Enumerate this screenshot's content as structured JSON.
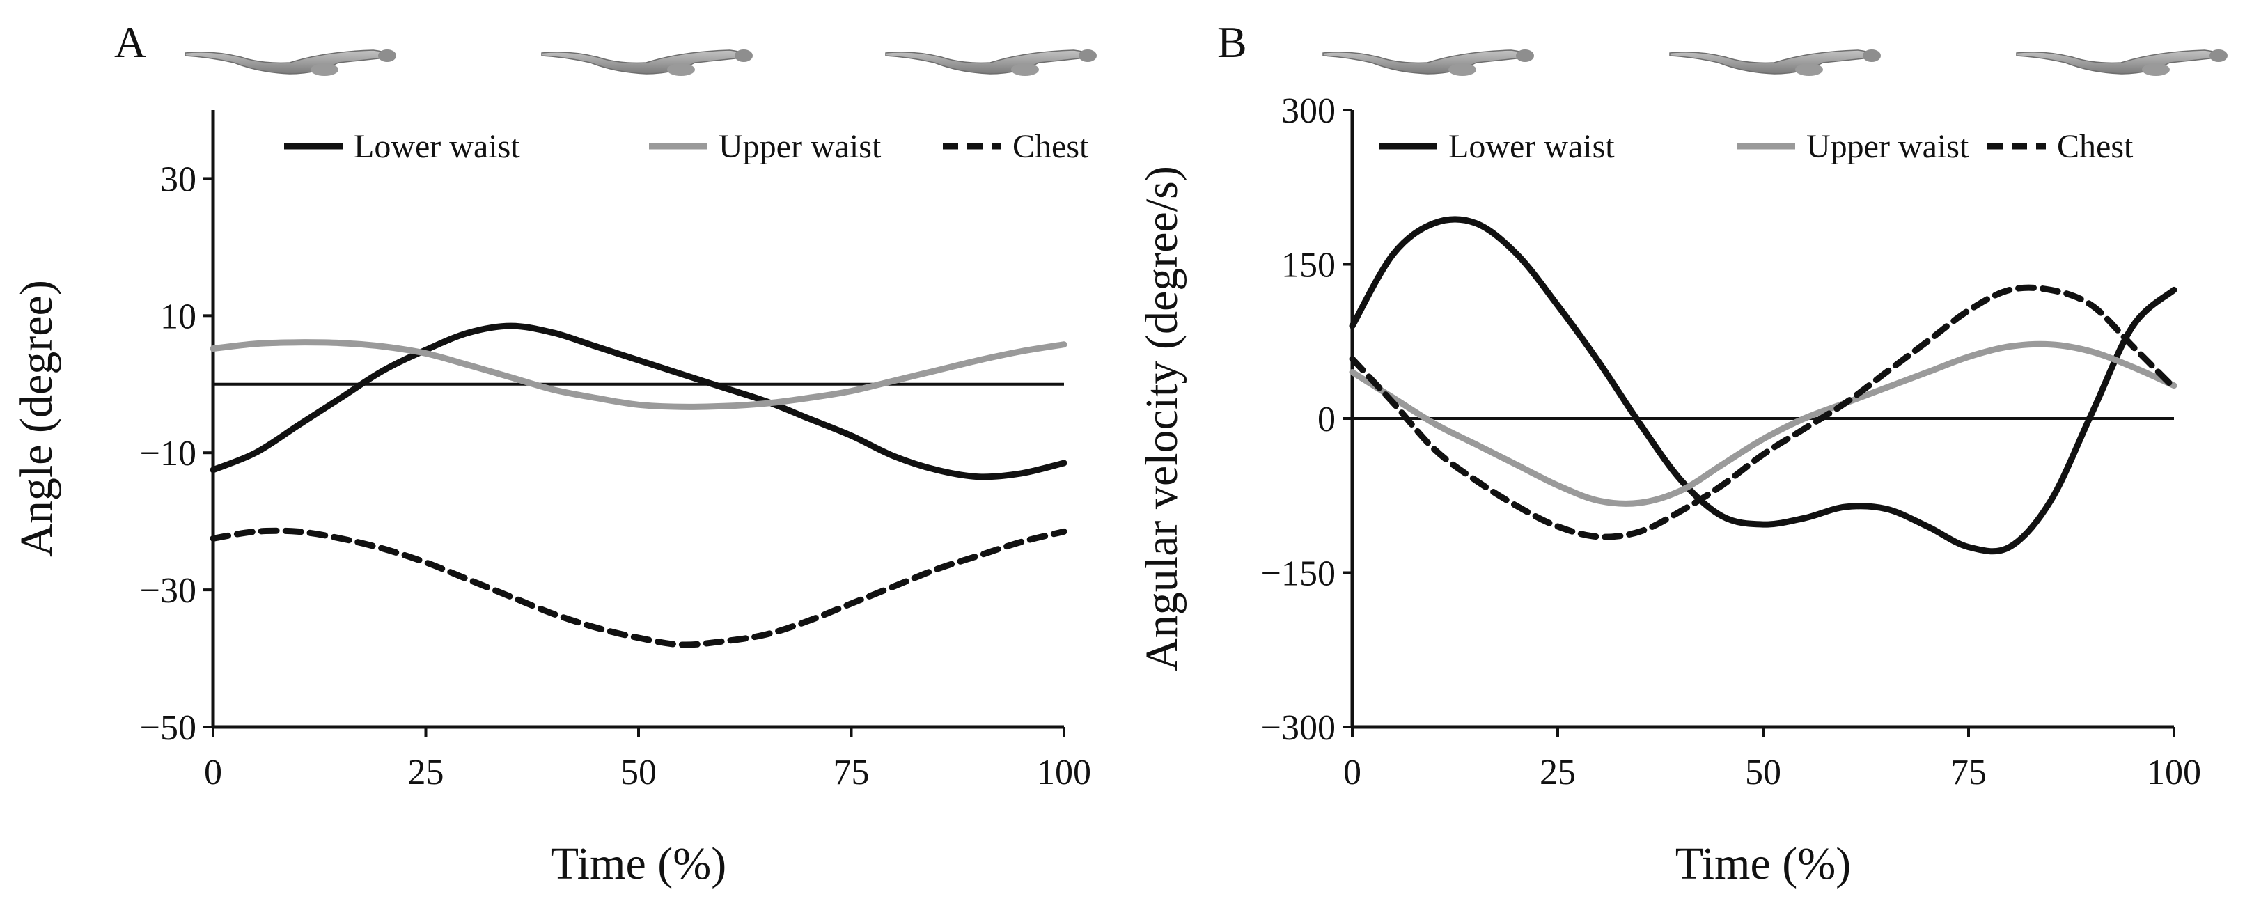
{
  "chart_data": [
    {
      "type": "line",
      "panel_label": "A",
      "xlabel": "Time (%)",
      "ylabel": "Angle (degree)",
      "xlim": [
        0,
        100
      ],
      "ylim": [
        -50,
        40
      ],
      "xticks": [
        0,
        25,
        50,
        75,
        100
      ],
      "yticks": [
        -50,
        -30,
        -10,
        10,
        30
      ],
      "reference_line_y": 0,
      "legend_position": "top-right",
      "grid": false,
      "series": [
        {
          "name": "Lower waist",
          "color": "#111111",
          "style": "solid",
          "x": [
            0,
            5,
            10,
            15,
            20,
            25,
            30,
            35,
            40,
            45,
            50,
            55,
            60,
            65,
            70,
            75,
            80,
            85,
            90,
            95,
            100
          ],
          "values": [
            -12.5,
            -10,
            -6,
            -2,
            2,
            5,
            7.5,
            8.5,
            7.5,
            5.5,
            3.5,
            1.5,
            -0.5,
            -2.5,
            -5,
            -7.5,
            -10.5,
            -12.5,
            -13.5,
            -13,
            -11.5
          ]
        },
        {
          "name": "Upper waist",
          "color": "#9a9a9a",
          "style": "solid",
          "x": [
            0,
            5,
            10,
            15,
            20,
            25,
            30,
            35,
            40,
            45,
            50,
            55,
            60,
            65,
            70,
            75,
            80,
            85,
            90,
            95,
            100
          ],
          "values": [
            5.2,
            5.9,
            6.1,
            6,
            5.5,
            4.5,
            2.8,
            1,
            -0.8,
            -2,
            -3,
            -3.3,
            -3.2,
            -2.8,
            -2,
            -1,
            0.5,
            2,
            3.5,
            4.8,
            5.8
          ]
        },
        {
          "name": "Chest",
          "color": "#111111",
          "style": "dashed",
          "x": [
            0,
            5,
            10,
            15,
            20,
            25,
            30,
            35,
            40,
            45,
            50,
            55,
            60,
            65,
            70,
            75,
            80,
            85,
            90,
            95,
            100
          ],
          "values": [
            -22.5,
            -21.5,
            -21.5,
            -22.5,
            -24,
            -26,
            -28.5,
            -31,
            -33.5,
            -35.5,
            -37,
            -38,
            -37.5,
            -36.5,
            -34.5,
            -32,
            -29.5,
            -27,
            -25,
            -23,
            -21.5
          ]
        }
      ]
    },
    {
      "type": "line",
      "panel_label": "B",
      "xlabel": "Time (%)",
      "ylabel": "Angular velocity (degree/s)",
      "xlim": [
        0,
        100
      ],
      "ylim": [
        -300,
        300
      ],
      "xticks": [
        0,
        25,
        50,
        75,
        100
      ],
      "yticks": [
        -300,
        -150,
        0,
        150,
        300
      ],
      "reference_line_y": 0,
      "legend_position": "top-right",
      "grid": false,
      "series": [
        {
          "name": "Lower waist",
          "color": "#111111",
          "style": "solid",
          "x": [
            0,
            5,
            10,
            15,
            20,
            25,
            30,
            35,
            40,
            45,
            50,
            55,
            60,
            65,
            70,
            75,
            80,
            85,
            90,
            95,
            100
          ],
          "values": [
            90,
            160,
            190,
            190,
            160,
            110,
            55,
            -5,
            -60,
            -95,
            -103,
            -97,
            -86,
            -88,
            -105,
            -125,
            -125,
            -80,
            5,
            90,
            125
          ]
        },
        {
          "name": "Upper waist",
          "color": "#9a9a9a",
          "style": "solid",
          "x": [
            0,
            5,
            10,
            15,
            20,
            25,
            30,
            35,
            40,
            45,
            50,
            55,
            60,
            65,
            70,
            75,
            80,
            85,
            90,
            95,
            100
          ],
          "values": [
            45,
            20,
            -5,
            -25,
            -45,
            -65,
            -80,
            -82,
            -70,
            -45,
            -20,
            0,
            15,
            30,
            45,
            60,
            70,
            72,
            65,
            50,
            32
          ]
        },
        {
          "name": "Chest",
          "color": "#111111",
          "style": "dashed",
          "x": [
            0,
            5,
            10,
            15,
            20,
            25,
            30,
            35,
            40,
            45,
            50,
            55,
            60,
            65,
            70,
            75,
            80,
            85,
            90,
            95,
            100
          ],
          "values": [
            58,
            15,
            -30,
            -60,
            -85,
            -105,
            -115,
            -110,
            -90,
            -65,
            -35,
            -10,
            15,
            45,
            75,
            105,
            125,
            125,
            110,
            70,
            30
          ]
        }
      ]
    }
  ]
}
